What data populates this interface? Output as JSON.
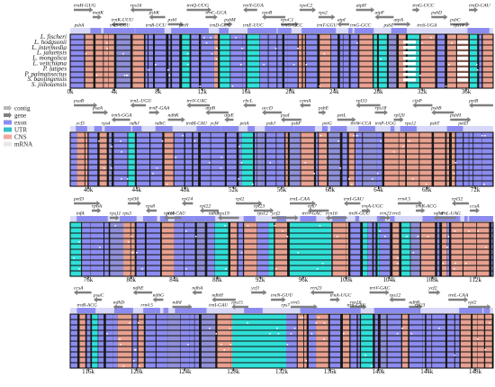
{
  "species": [
    "L. fischeri",
    "L. hodgsonii",
    "L. intermedia",
    "L. jaluensis",
    "L. mongolica",
    "L. veitchiana",
    "P. latipes",
    "P. palmatisectus",
    "S. baojingensis",
    "S. jishouensis"
  ],
  "legend": [
    {
      "label": "contig",
      "color": "#b8b8b8",
      "shape": "arrow"
    },
    {
      "label": "gene",
      "color": "#808080",
      "shape": "arrow"
    },
    {
      "label": "exon",
      "color": "#8c8cf0",
      "shape": "box"
    },
    {
      "label": "UTR",
      "color": "#30c0c8",
      "shape": "box"
    },
    {
      "label": "CNS",
      "color": "#f0a8a0",
      "shape": "box"
    },
    {
      "label": "mRNA",
      "color": "#e8e8e8",
      "shape": "box"
    }
  ],
  "colors": {
    "exon": "#8c8cf0",
    "utr": "#30e0d8",
    "cns": "#e8a090",
    "panel_bg": "#1a1a1a",
    "gene_arrow": "#808080",
    "identity": "#5a5a9a"
  },
  "panels": [
    {
      "ticks": [
        "0k",
        "4k",
        "8k",
        "12k",
        "16k",
        "20k",
        "24k",
        "28k",
        "32k",
        "36k"
      ],
      "genes_top": [
        "trnH-GUG",
        "matK",
        "trnK-UUU",
        "rps16",
        "psbK",
        "psbI",
        "trnQ-UUG",
        "trnC-GCA",
        "psbM",
        "trnY-GUA",
        "rpoB",
        "rpoC1",
        "rpoC2",
        "rps2",
        "atpI",
        "atpH",
        "atpF",
        "atpA",
        "trnG-UCC",
        "psbD",
        "psbC",
        "trnD-CAU"
      ],
      "genes_bottom": [
        "psbA",
        "trnS-GCU",
        "trnR-UCU",
        "petN",
        "trnD-GUC",
        "trnE-UUC",
        "trnG-UCC",
        "trnT-GGU",
        "trnG-GCC",
        "psbZ",
        "trnS-UGA",
        "rps14"
      ]
    },
    {
      "ticks": [
        "40k",
        "44k",
        "48k",
        "52k",
        "56k",
        "60k",
        "64k",
        "68k",
        "72k"
      ],
      "genes_top": [
        "psaB",
        "psaA",
        "trnS-GGA",
        "trnL-UGU",
        "trnF-GAA",
        "ndhK",
        "trnV-UAC",
        "atpB",
        "atpE",
        "rbcL",
        "accD",
        "psaI",
        "cemA",
        "psbE",
        "petL",
        "rpl33",
        "rps18",
        "rpl20",
        "clpP",
        "psbB",
        "psbH",
        "petB"
      ],
      "genes_bottom": [
        "ycf3",
        "rps4",
        "ndhJ",
        "ndhC",
        "trnM-CAU",
        "ycf4",
        "petA",
        "psbJ",
        "psbF",
        "petG",
        "trnW-CCA",
        "trnP-UGG",
        "rps12",
        "psbT",
        "petD"
      ]
    },
    {
      "ticks": [
        "76k",
        "80k",
        "84k",
        "88k",
        "92k",
        "96k",
        "100k",
        "104k",
        "108k",
        "112k"
      ],
      "genes_top": [
        "petD",
        "rpoA",
        "rps11",
        "rpl36",
        "rps8",
        "rpl16",
        "rpl14",
        "rpl22",
        "rps19",
        "rpl2",
        "rpl23",
        "ycf2",
        "trnL-CAA",
        "rps7",
        "rrn16",
        "trnI-GAU",
        "trnA-UGC",
        "rrn23",
        "rrn4.5",
        "trnR-ACG",
        "ndhF",
        "rpl32",
        "ccsA"
      ],
      "genes_bottom": [
        "infA",
        "rps3",
        "trnI-CAU",
        "ndhB",
        "rps12",
        "trnV-GAC",
        "trnN-GUU",
        "rrn5",
        "trnL-UAG"
      ]
    },
    {
      "ticks": [
        "116k",
        "120k",
        "124k",
        "128k",
        "132k",
        "136k",
        "140k",
        "144k",
        "148k"
      ],
      "genes_top": [
        "ccsA",
        "psaC",
        "ndhD",
        "ndhE",
        "ndhG",
        "ndhI",
        "ndhA",
        "ndhH",
        "rps15",
        "ycf1",
        "trnN-GUU",
        "rrn5",
        "rrn23",
        "trnA-UGC",
        "rrn16",
        "trnV-GAC",
        "rps12",
        "ndhB",
        "ycf2",
        "trnL-CAA",
        "rpl2"
      ],
      "genes_bottom": [
        "trnR-ACG",
        "rrn4.5",
        "trnI-GAU",
        "rps7",
        "trnI-CAU",
        "rpl23"
      ]
    }
  ]
}
